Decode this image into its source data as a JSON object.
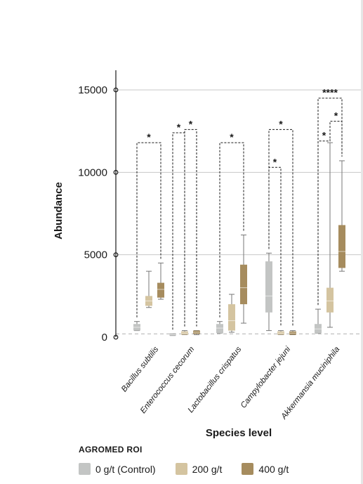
{
  "chart_data": {
    "type": "boxplot",
    "xlabel": "Species level",
    "ylabel": "Abundance",
    "ylim": [
      0,
      16000
    ],
    "yticks": [
      0,
      5000,
      10000,
      15000
    ],
    "ytick_labels": [
      "0",
      "5000",
      "10000",
      "15000"
    ],
    "grid": "horizontal",
    "baseline_dashed": true,
    "legend_title": "AGROMED ROI",
    "legend_position": "bottom-left",
    "categories": [
      "Bacillus subtilis",
      "Enterococcus cecorum",
      "Lactobacillus crispatus",
      "Campylobacter jejuni",
      "Akkermansia muciniphila"
    ],
    "series": [
      {
        "name": "0 g/t (Control)",
        "color": "#c3c5c4",
        "boxes": [
          {
            "min": 400,
            "q1": 400,
            "median": 600,
            "q3": 800,
            "max": 950
          },
          {
            "min": 100,
            "q1": 100,
            "median": 150,
            "q3": 200,
            "max": 200
          },
          {
            "min": 250,
            "q1": 250,
            "median": 550,
            "q3": 800,
            "max": 950
          },
          {
            "min": 400,
            "q1": 1500,
            "median": 2500,
            "q3": 4600,
            "max": 5100
          },
          {
            "min": 250,
            "q1": 250,
            "median": 500,
            "q3": 800,
            "max": 1700
          }
        ]
      },
      {
        "name": "200 g/t",
        "color": "#d4c4a0",
        "boxes": [
          {
            "min": 1800,
            "q1": 1900,
            "median": 2200,
            "q3": 2500,
            "max": 4000
          },
          {
            "min": 150,
            "q1": 150,
            "median": 250,
            "q3": 350,
            "max": 400
          },
          {
            "min": 300,
            "q1": 400,
            "median": 1000,
            "q3": 2000,
            "max": 2600
          },
          {
            "min": 150,
            "q1": 150,
            "median": 250,
            "q3": 350,
            "max": 400
          },
          {
            "min": 600,
            "q1": 1500,
            "median": 2200,
            "q3": 3000,
            "max": 11800
          }
        ]
      },
      {
        "name": "400 g/t",
        "color": "#a68c5e",
        "boxes": [
          {
            "min": 2300,
            "q1": 2400,
            "median": 2900,
            "q3": 3300,
            "max": 4500
          },
          {
            "min": 150,
            "q1": 200,
            "median": 300,
            "q3": 400,
            "max": 400
          },
          {
            "min": 850,
            "q1": 2000,
            "median": 3000,
            "q3": 4400,
            "max": 6200
          },
          {
            "min": 150,
            "q1": 150,
            "median": 250,
            "q3": 350,
            "max": 400
          },
          {
            "min": 4000,
            "q1": 4200,
            "median": 5200,
            "q3": 6800,
            "max": 10700
          }
        ]
      }
    ],
    "annotations": [
      {
        "category": 0,
        "from": 0,
        "to": 2,
        "label": "*",
        "level": 11800
      },
      {
        "category": 1,
        "from": 0,
        "to": 1,
        "label": "*",
        "level": 12400
      },
      {
        "category": 1,
        "from": 1,
        "to": 2,
        "label": "*",
        "level": 12600
      },
      {
        "category": 2,
        "from": 0,
        "to": 2,
        "label": "*",
        "level": 11800
      },
      {
        "category": 3,
        "from": 0,
        "to": 1,
        "label": "*",
        "level": 10300
      },
      {
        "category": 3,
        "from": 0,
        "to": 2,
        "label": "*",
        "level": 12600
      },
      {
        "category": 4,
        "from": 0,
        "to": 1,
        "label": "*",
        "level": 11900
      },
      {
        "category": 4,
        "from": 1,
        "to": 2,
        "label": "*",
        "level": 13100
      },
      {
        "category": 4,
        "from": 0,
        "to": 2,
        "label": "****",
        "level": 14500
      }
    ]
  }
}
